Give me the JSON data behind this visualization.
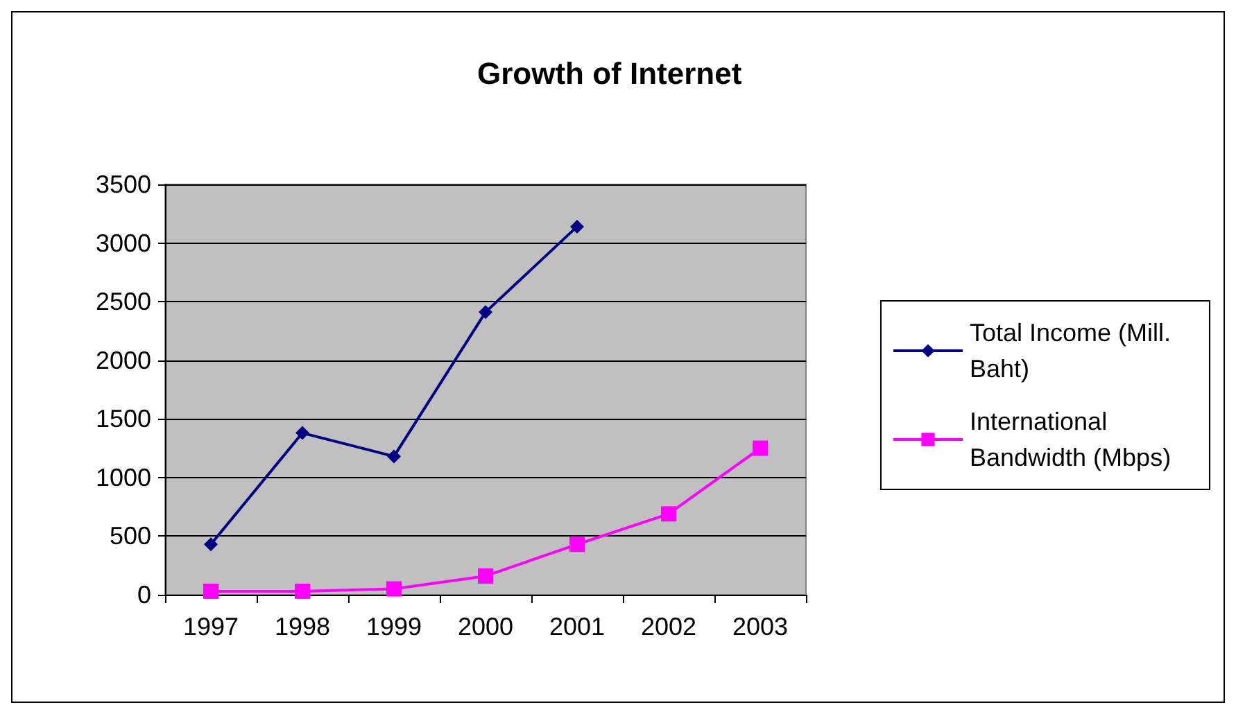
{
  "chart_data": {
    "type": "line",
    "title": "Growth of Internet",
    "categories": [
      "1997",
      "1998",
      "1999",
      "2000",
      "2001",
      "2002",
      "2003"
    ],
    "series": [
      {
        "name": "Total Income (Mill. Baht)",
        "color": "#000080",
        "marker": "diamond",
        "values": [
          430,
          1380,
          1180,
          2410,
          3140,
          null,
          null
        ]
      },
      {
        "name": "International Bandwidth (Mbps)",
        "color": "#ff00ff",
        "marker": "square",
        "values": [
          30,
          30,
          50,
          160,
          430,
          690,
          1250
        ]
      }
    ],
    "ylim": [
      0,
      3500
    ],
    "yticks": [
      0,
      500,
      1000,
      1500,
      2000,
      2500,
      3000,
      3500
    ],
    "grid": "y",
    "legend": "right",
    "line_style": "solid"
  }
}
